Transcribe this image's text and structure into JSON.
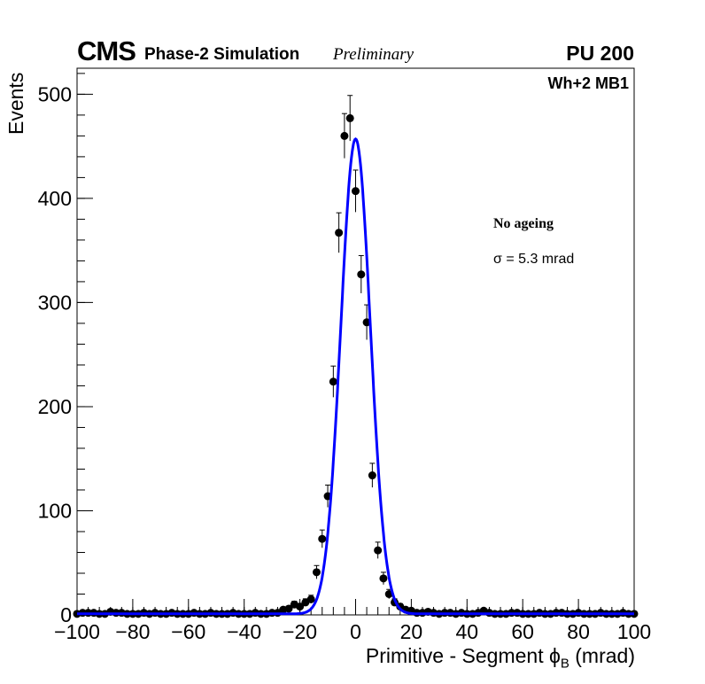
{
  "header": {
    "cms": "CMS",
    "simulation": "Phase-2 Simulation",
    "preliminary": "Preliminary",
    "pileup": "PU 200"
  },
  "chart_data": {
    "type": "scatter",
    "title": "",
    "xlabel": "Primitive - Segment ϕ",
    "xlabel_sub": "B",
    "xlabel_unit": "(mrad)",
    "ylabel": "Events",
    "xlim": [
      -100,
      100
    ],
    "ylim": [
      0,
      525
    ],
    "xticks": [
      -100,
      -80,
      -60,
      -40,
      -20,
      0,
      20,
      40,
      60,
      80,
      100
    ],
    "xtick_labels": [
      "−100",
      "−80",
      "−60",
      "−40",
      "−20",
      "0",
      "20",
      "40",
      "60",
      "80",
      "100"
    ],
    "yticks": [
      0,
      100,
      200,
      300,
      400,
      500
    ],
    "ytick_labels": [
      "0",
      "100",
      "200",
      "300",
      "400",
      "500"
    ],
    "grid": false,
    "annotations": {
      "chamber": "Wh+2 MB1",
      "condition": "No ageing",
      "sigma_text": "σ = 5.3 mrad"
    },
    "series": [
      {
        "name": "data",
        "style": "markers-with-errors",
        "color": "#000000",
        "x": [
          -100,
          -98,
          -96,
          -94,
          -92,
          -90,
          -88,
          -86,
          -84,
          -82,
          -80,
          -78,
          -76,
          -74,
          -72,
          -70,
          -68,
          -66,
          -64,
          -62,
          -60,
          -58,
          -56,
          -54,
          -52,
          -50,
          -48,
          -46,
          -44,
          -42,
          -40,
          -38,
          -36,
          -34,
          -32,
          -30,
          -28,
          -26,
          -24,
          -22,
          -20,
          -18,
          -16,
          -14,
          -12,
          -10,
          -8,
          -6,
          -4,
          -2,
          0,
          2,
          4,
          6,
          8,
          10,
          12,
          14,
          16,
          18,
          20,
          22,
          24,
          26,
          28,
          30,
          32,
          34,
          36,
          38,
          40,
          42,
          44,
          46,
          48,
          50,
          52,
          54,
          56,
          58,
          60,
          62,
          64,
          66,
          68,
          70,
          72,
          74,
          76,
          78,
          80,
          82,
          84,
          86,
          88,
          90,
          92,
          94,
          96,
          98,
          100
        ],
        "y": [
          1,
          2,
          2,
          2,
          1,
          1,
          3,
          2,
          2,
          1,
          1,
          1,
          2,
          1,
          2,
          1,
          1,
          2,
          1,
          1,
          1,
          2,
          1,
          1,
          2,
          1,
          1,
          1,
          2,
          1,
          1,
          1,
          2,
          1,
          1,
          2,
          2,
          5,
          6,
          10,
          8,
          12,
          15,
          41,
          73,
          114,
          224,
          367,
          460,
          477,
          407,
          327,
          281,
          134,
          62,
          35,
          20,
          12,
          8,
          5,
          4,
          2,
          2,
          3,
          2,
          1,
          2,
          2,
          1,
          2,
          1,
          1,
          2,
          4,
          2,
          1,
          1,
          1,
          2,
          2,
          1,
          1,
          1,
          2,
          1,
          1,
          2,
          2,
          1,
          1,
          2,
          1,
          1,
          1,
          2,
          1,
          1,
          1,
          2,
          1,
          1
        ]
      },
      {
        "name": "gaussian-fit",
        "style": "line",
        "color": "#0000ff",
        "function": "gaussian",
        "amplitude": 456,
        "mean": 0,
        "sigma": 5.3,
        "constant": 1
      }
    ]
  }
}
